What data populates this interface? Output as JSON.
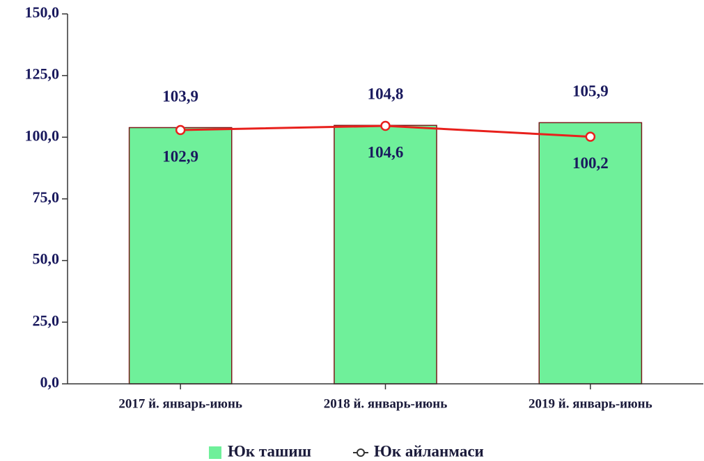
{
  "chart_data": {
    "type": "bar",
    "categories": [
      "2017 й. январь-июнь",
      "2018 й. январь-июнь",
      "2019 й. январь-июнь"
    ],
    "series": [
      {
        "name": "Юк ташиш",
        "type": "bar",
        "color": "#6ff09a",
        "values": [
          103.9,
          104.8,
          105.9
        ],
        "value_labels": [
          "103,9",
          "104,8",
          "105,9"
        ]
      },
      {
        "name": "Юк айланмаси",
        "type": "line",
        "color": "#e8201c",
        "values": [
          102.9,
          104.6,
          100.2
        ],
        "value_labels": [
          "102,9",
          "104,6",
          "100,2"
        ]
      }
    ],
    "ylim": [
      0,
      150
    ],
    "yticks": [
      {
        "value": 0,
        "label": "0,0"
      },
      {
        "value": 25,
        "label": "25,0"
      },
      {
        "value": 50,
        "label": "50,0"
      },
      {
        "value": 75,
        "label": "75,0"
      },
      {
        "value": 100,
        "label": "100,0"
      },
      {
        "value": 125,
        "label": "125,0"
      },
      {
        "value": 150,
        "label": "150,0"
      }
    ],
    "legend": "bottom"
  }
}
